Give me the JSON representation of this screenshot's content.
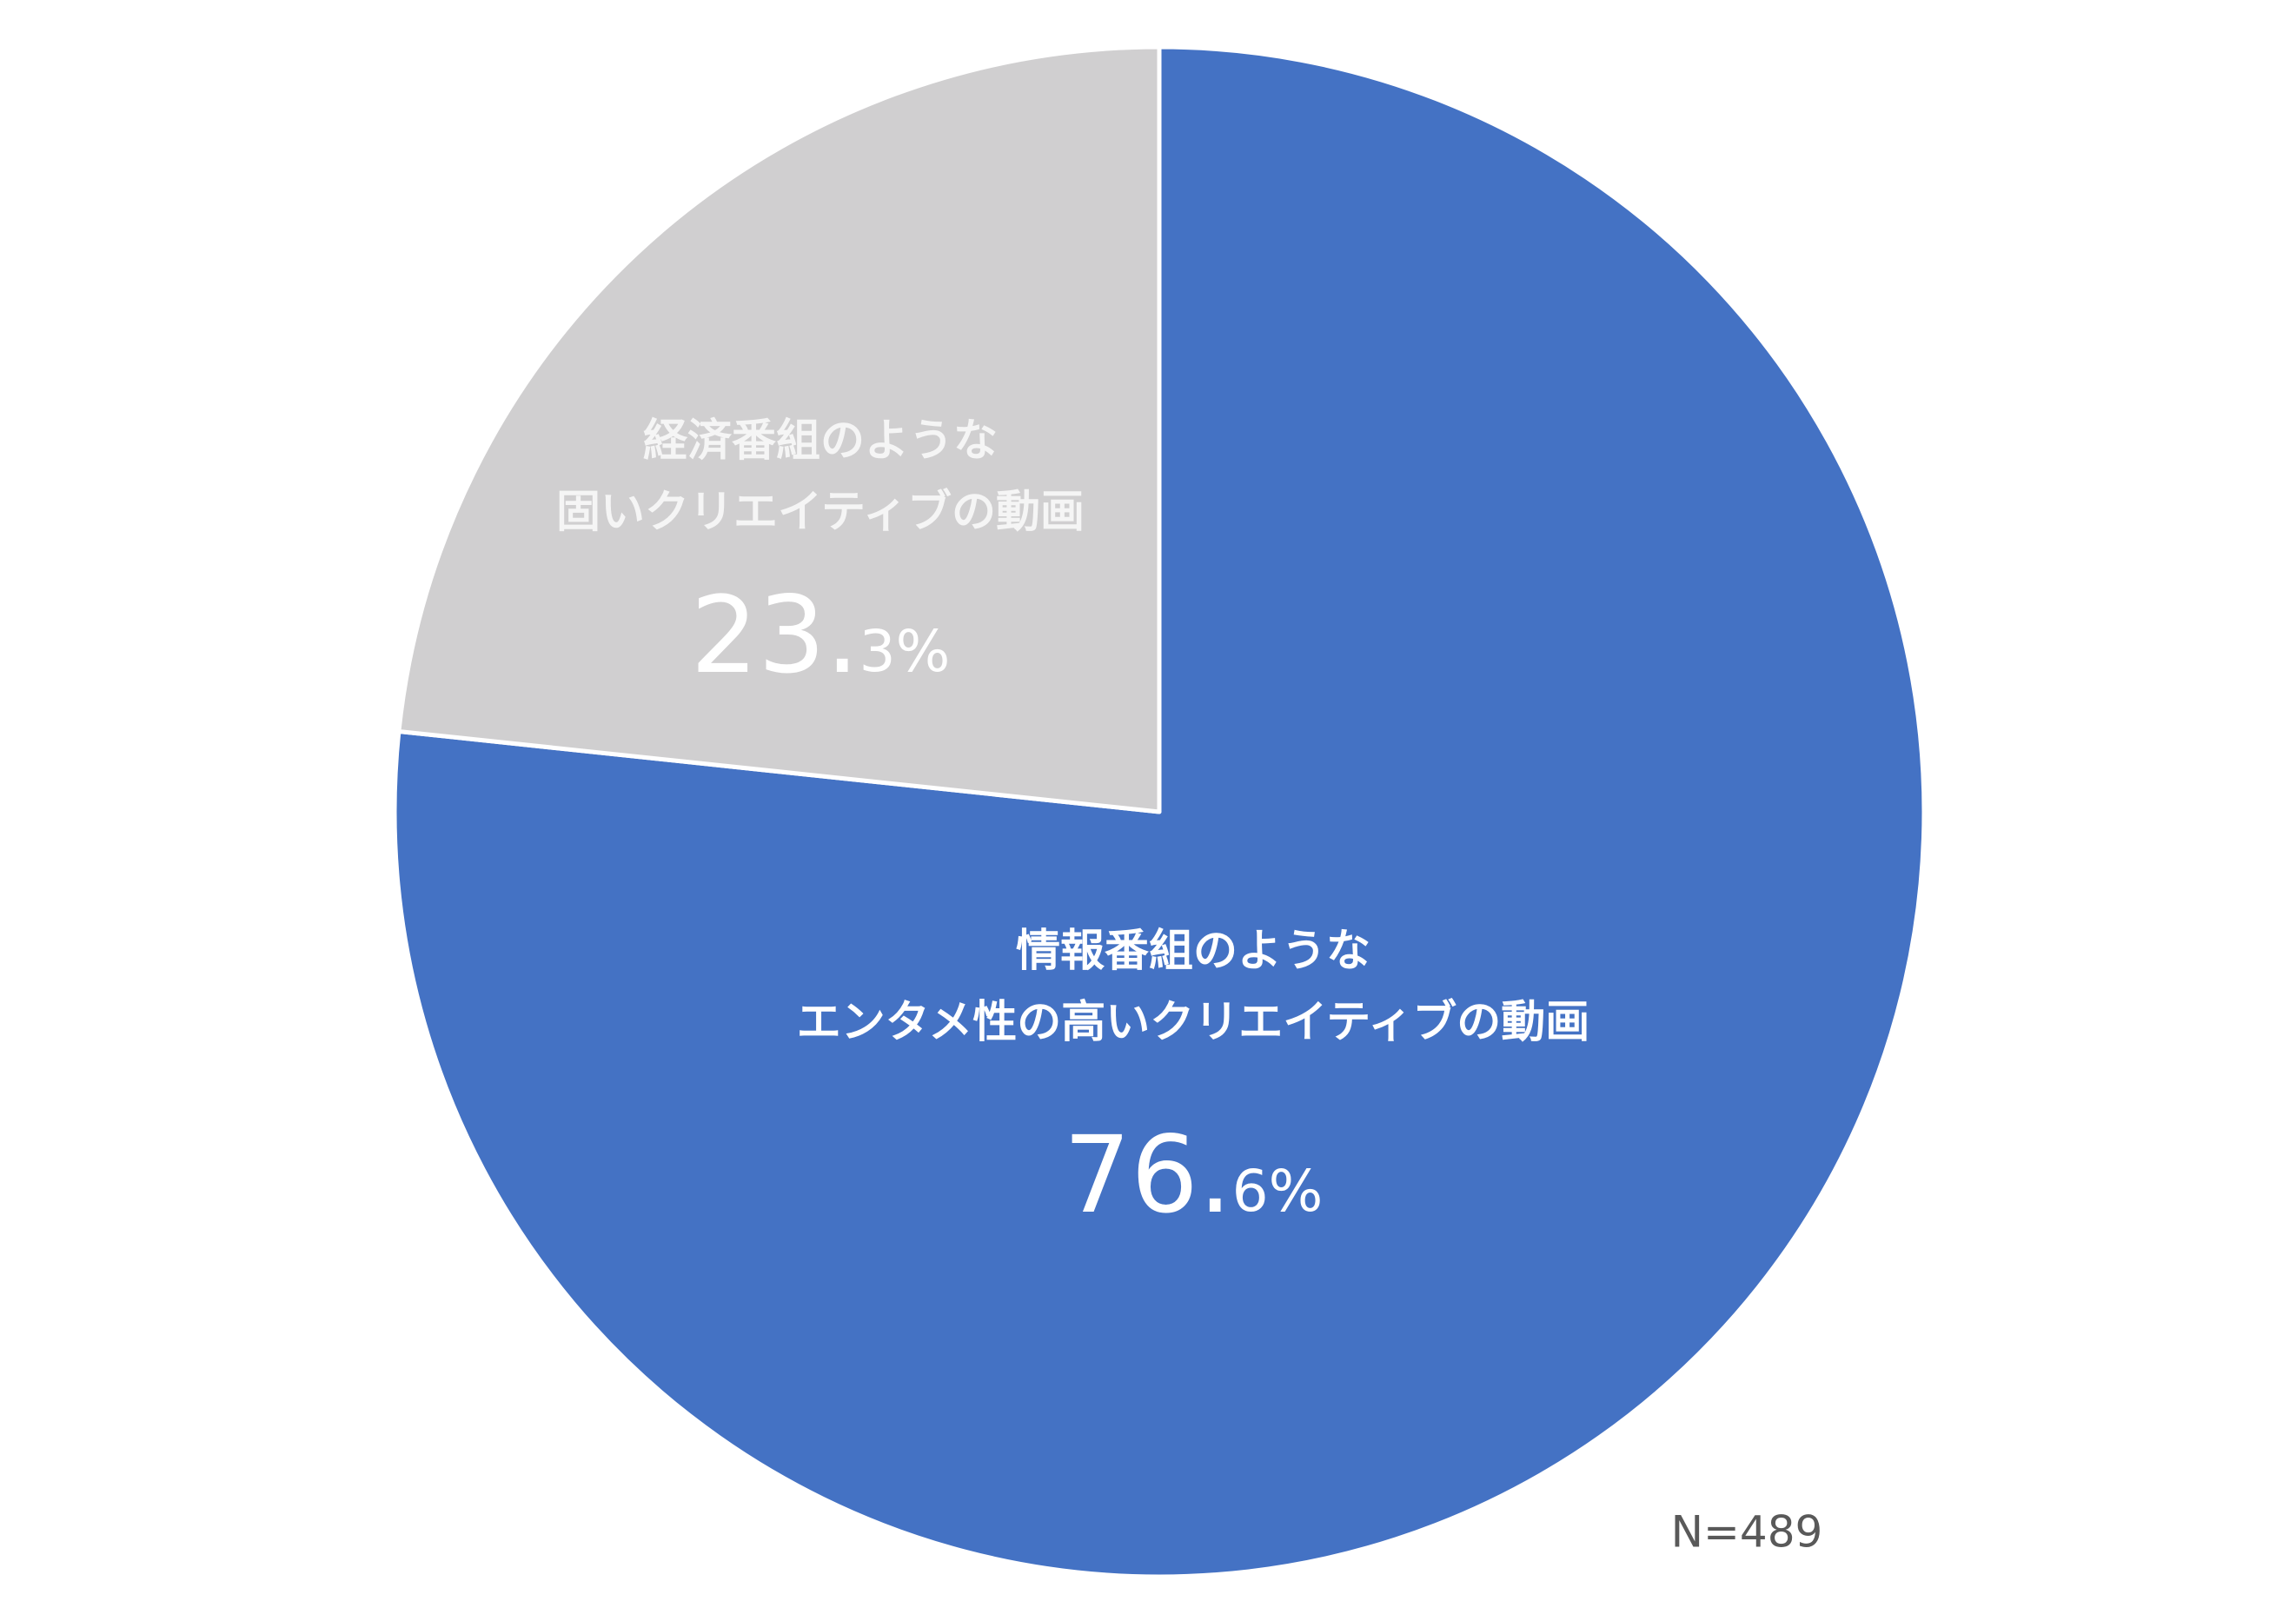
{
  "chart_data": {
    "type": "pie",
    "categories": [
      "情報番組のような\nエンタメ性の高いクリエイティブの動画",
      "経済番組のような\n固いクリエイティブの動画"
    ],
    "values": [
      76.6,
      23.3
    ],
    "value_labels": [
      "76.6%",
      "23.3%"
    ],
    "colors": [
      "#4472c4",
      "#d0cfd0"
    ],
    "note": "N=489"
  }
}
